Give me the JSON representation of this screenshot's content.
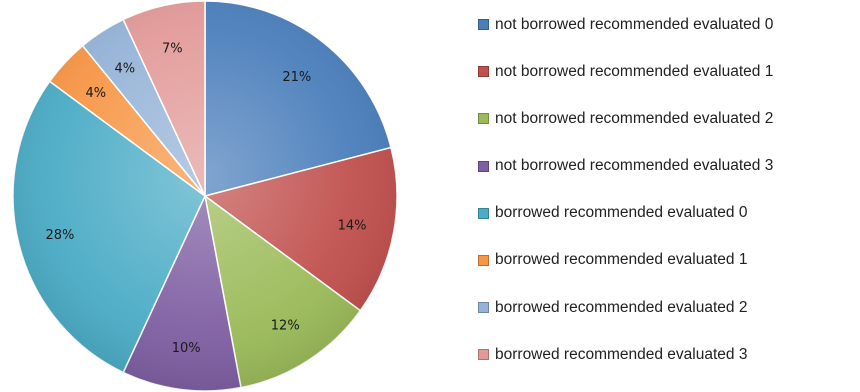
{
  "chart_data": {
    "type": "pie",
    "legend_position": "right",
    "slices": [
      {
        "name": "not borrowed recommended  evaluated 0",
        "value": 21,
        "label": "21%",
        "color": "#4a7ebb"
      },
      {
        "name": "not borrowed recommended  evaluated 1",
        "value": 14,
        "label": "14%",
        "color": "#c0504d"
      },
      {
        "name": "not borrowed recommended  evaluated 2",
        "value": 12,
        "label": "12%",
        "color": "#9bbb59"
      },
      {
        "name": "not borrowed recommended  evaluated 3",
        "value": 10,
        "label": "10%",
        "color": "#7f5fa3"
      },
      {
        "name": "borrowed recommended  evaluated 0",
        "value": 28,
        "label": "28%",
        "color": "#4bacc6"
      },
      {
        "name": "borrowed recommended  evaluated 1",
        "value": 4,
        "label": "4%",
        "color": "#f79646"
      },
      {
        "name": "borrowed recommended  evaluated 2",
        "value": 4,
        "label": "4%",
        "color": "#95b3d7"
      },
      {
        "name": "borrowed recommended  evaluated 3",
        "value": 7,
        "label": "7%",
        "color": "#e29a98"
      }
    ]
  }
}
